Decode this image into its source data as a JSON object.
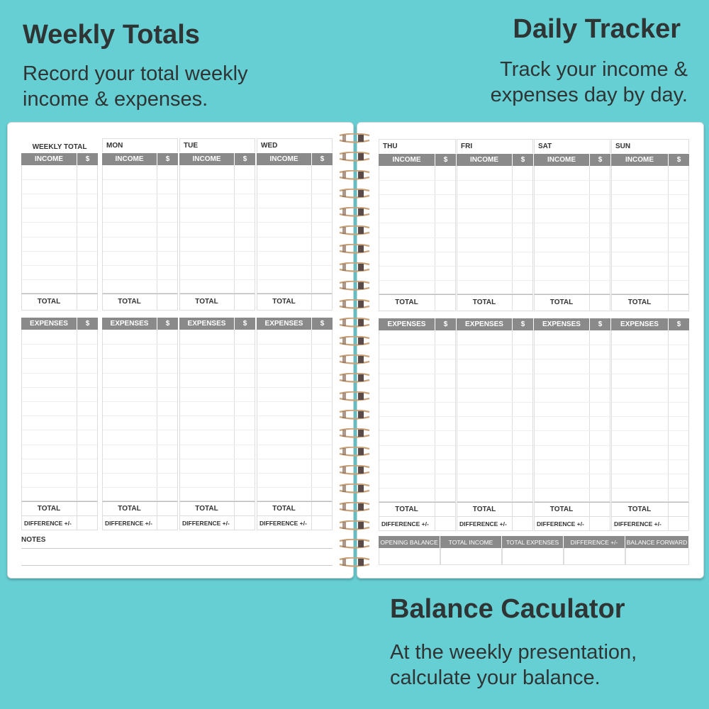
{
  "captions": {
    "weekly_title": "Weekly Totals",
    "weekly_sub_1": "Record your total weekly",
    "weekly_sub_2": "income & expenses.",
    "daily_title": "Daily Tracker",
    "daily_sub_1": "Track your income &",
    "daily_sub_2": "expenses day by day.",
    "balance_title": "Balance Caculator",
    "balance_sub_1": "At the weekly presentation,",
    "balance_sub_2": "calculate your balance."
  },
  "labels": {
    "income": "INCOME",
    "expenses": "EXPENSES",
    "dollar": "$",
    "total": "TOTAL",
    "difference": "DIFFERENCE +/-",
    "notes": "NOTES"
  },
  "left_columns": [
    "WEEKLY TOTAL",
    "MON",
    "TUE",
    "WED"
  ],
  "right_columns": [
    "THU",
    "FRI",
    "SAT",
    "SUN"
  ],
  "balance_table": [
    "OPENING BALANCE",
    "TOTAL INCOME",
    "TOTAL EXPENSES",
    "DIFFERENCE +/-",
    "BALANCE FORWARD"
  ],
  "colors": {
    "background": "#66cfd4",
    "header_gray": "#8a8a8a",
    "spiral": "#c9a27a"
  }
}
